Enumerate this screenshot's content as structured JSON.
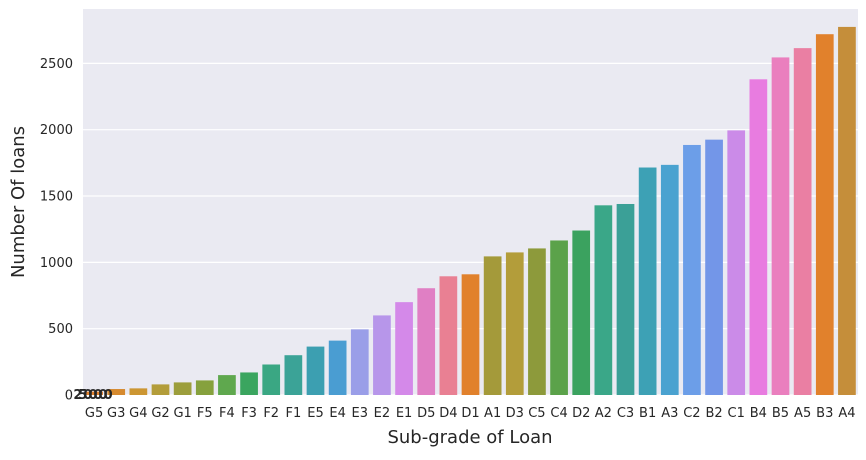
{
  "chart_data": {
    "type": "bar",
    "title": "",
    "xlabel": "Sub-grade of Loan",
    "ylabel": "Number Of loans",
    "categories": [
      "G5",
      "G3",
      "G4",
      "G2",
      "G1",
      "F5",
      "F4",
      "F3",
      "F2",
      "F1",
      "E5",
      "E4",
      "E3",
      "E2",
      "E1",
      "D5",
      "D4",
      "D1",
      "A1",
      "D3",
      "C5",
      "C4",
      "D2",
      "A2",
      "C3",
      "B1",
      "A3",
      "C2",
      "B2",
      "C1",
      "B4",
      "B5",
      "A5",
      "B3",
      "A4"
    ],
    "values": [
      25,
      45,
      50,
      80,
      95,
      110,
      150,
      170,
      230,
      300,
      365,
      410,
      495,
      600,
      700,
      805,
      895,
      910,
      1045,
      1075,
      1105,
      1165,
      1240,
      1430,
      1440,
      1715,
      1735,
      1885,
      1925,
      1995,
      2380,
      2545,
      2615,
      2720,
      2775
    ],
    "colors": [
      "#e1812c",
      "#d68a2f",
      "#cc9632",
      "#b39d3a",
      "#9c9e3c",
      "#86a13d",
      "#5fa84e",
      "#3aa55f",
      "#3aa783",
      "#3ba397",
      "#3c9fb1",
      "#4a9dd2",
      "#9a9ee8",
      "#b796ea",
      "#d489e9",
      "#e07fc4",
      "#e98093",
      "#e1812c",
      "#a49a3a",
      "#b39d3a",
      "#8d9a3b",
      "#5ba24a",
      "#3ba25f",
      "#3aa788",
      "#3ba097",
      "#3da1b5",
      "#4aa2d0",
      "#6c9ee8",
      "#7396e8",
      "#cb8be8",
      "#e87ce0",
      "#ea7fbe",
      "#ea7fa3",
      "#e1812c",
      "#c58e3a"
    ],
    "yticks": [
      0,
      500,
      1000,
      1500,
      2000,
      2500
    ],
    "ylim": [
      0,
      2910
    ],
    "grid": true,
    "overlap_tick_label": "2500000"
  }
}
